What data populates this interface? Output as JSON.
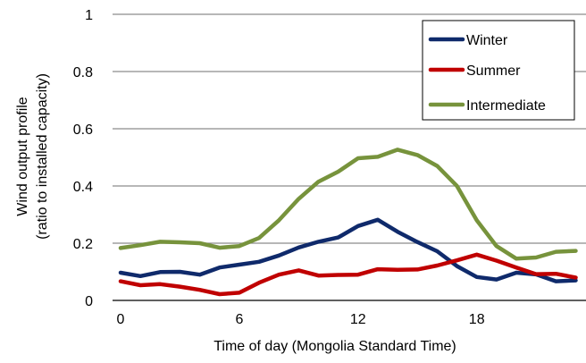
{
  "chart_data": {
    "type": "line",
    "xlabel": "Time of day (Mongolia Standard Time)",
    "ylabel_lines": [
      "Wind output profile",
      "(ratio to installed capacity)"
    ],
    "x": [
      0,
      1,
      2,
      3,
      4,
      5,
      6,
      7,
      8,
      9,
      10,
      11,
      12,
      13,
      14,
      15,
      16,
      17,
      18,
      19,
      20,
      21,
      22,
      23
    ],
    "xticks": [
      0,
      6,
      12,
      18
    ],
    "yticks": [
      0,
      0.2,
      0.4,
      0.6,
      0.8,
      1
    ],
    "ytick_labels": [
      "0",
      "0.2",
      "0.4",
      "0.6",
      "0.8",
      "1"
    ],
    "ylim": [
      0,
      1
    ],
    "grid": true,
    "legend_position": "top-right",
    "series": [
      {
        "name": "Winter",
        "color": "#0f2a6b",
        "values": [
          0.097,
          0.085,
          0.099,
          0.1,
          0.09,
          0.115,
          0.125,
          0.135,
          0.157,
          0.185,
          0.205,
          0.22,
          0.26,
          0.282,
          0.24,
          0.204,
          0.172,
          0.12,
          0.082,
          0.073,
          0.097,
          0.091,
          0.067,
          0.07
        ]
      },
      {
        "name": "Summer",
        "color": "#c00000",
        "values": [
          0.067,
          0.053,
          0.057,
          0.048,
          0.037,
          0.022,
          0.027,
          0.062,
          0.09,
          0.105,
          0.087,
          0.089,
          0.09,
          0.109,
          0.107,
          0.108,
          0.122,
          0.14,
          0.16,
          0.139,
          0.115,
          0.092,
          0.093,
          0.08
        ]
      },
      {
        "name": "Intermediate",
        "color": "#77933c",
        "values": [
          0.183,
          0.193,
          0.205,
          0.203,
          0.2,
          0.184,
          0.19,
          0.218,
          0.28,
          0.355,
          0.415,
          0.45,
          0.497,
          0.502,
          0.527,
          0.508,
          0.47,
          0.4,
          0.28,
          0.19,
          0.146,
          0.15,
          0.17,
          0.173
        ]
      }
    ]
  }
}
